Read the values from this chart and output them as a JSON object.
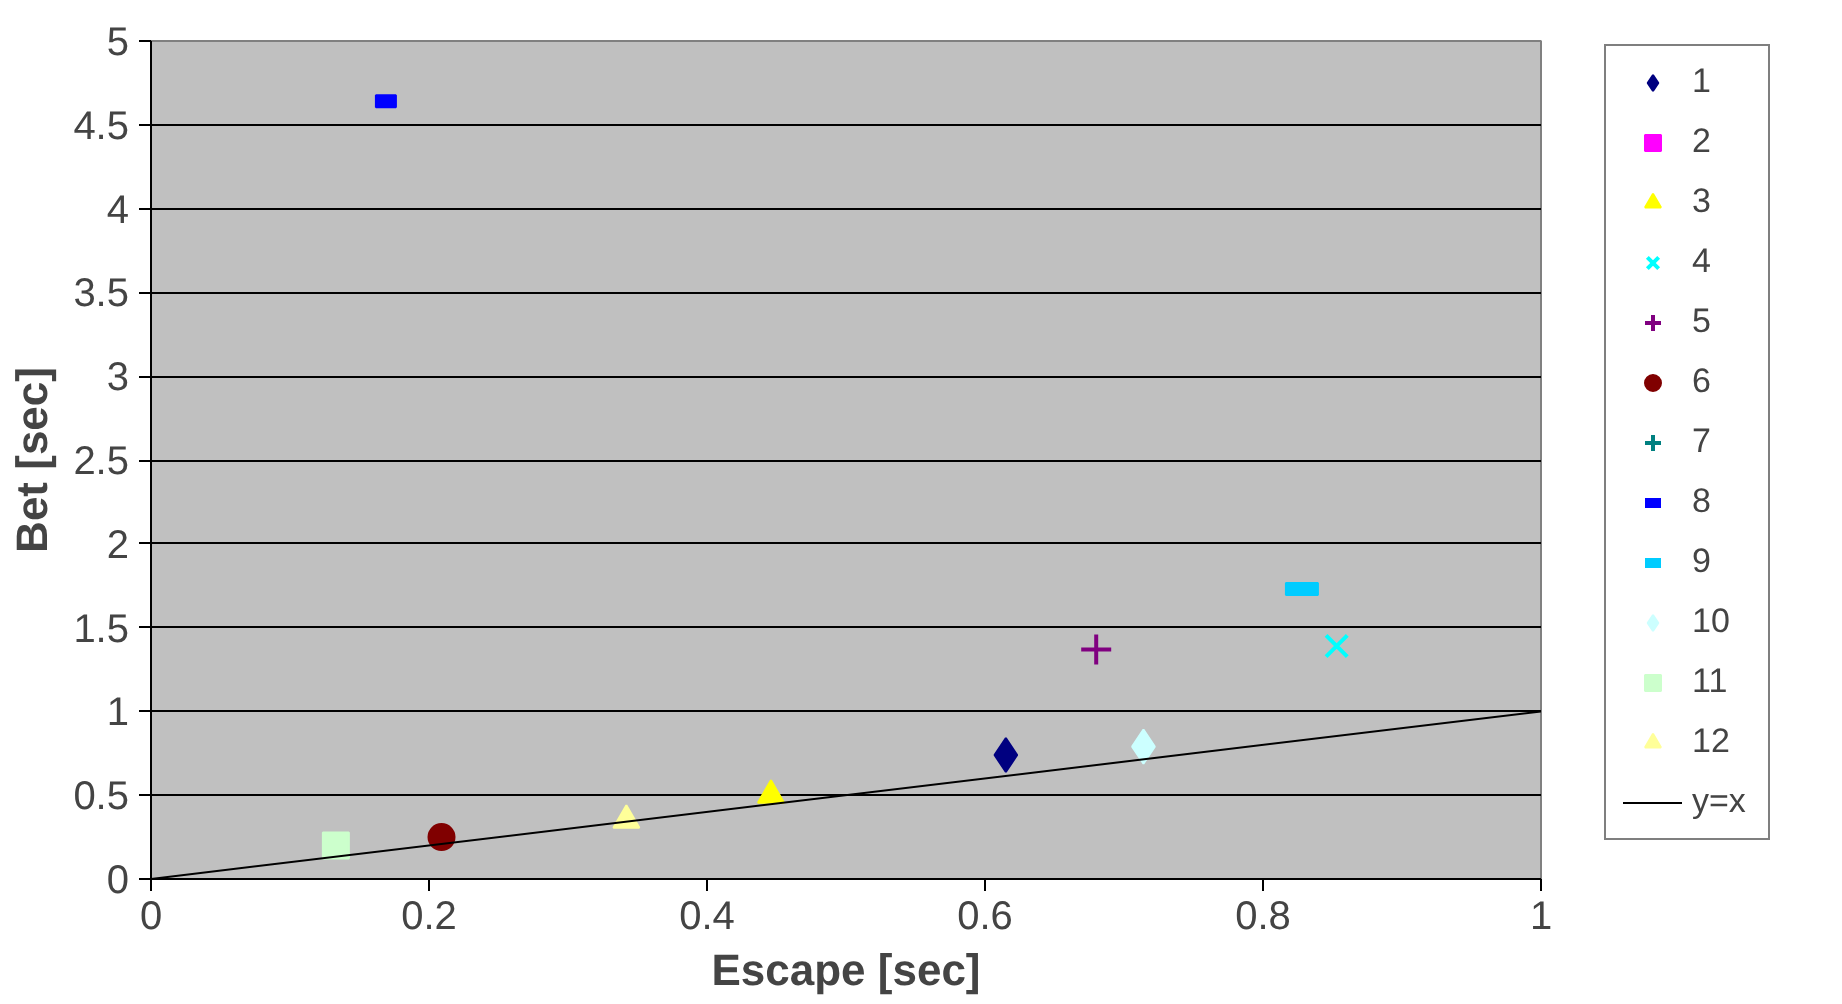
{
  "chart_data": {
    "type": "scatter",
    "xlabel": "Escape [sec]",
    "ylabel": "Bet [sec]",
    "xlim": [
      0,
      1
    ],
    "ylim": [
      0,
      5
    ],
    "xticks": [
      0,
      0.2,
      0.4,
      0.6,
      0.8,
      1
    ],
    "yticks": [
      0,
      0.5,
      1,
      1.5,
      2,
      2.5,
      3,
      3.5,
      4,
      4.5,
      5
    ],
    "grid": "y",
    "legend": "right",
    "series": [
      {
        "name": "1",
        "color": "#000080",
        "marker": "diamond",
        "x": [
          0.615
        ],
        "values": [
          0.74
        ]
      },
      {
        "name": "2",
        "color": "#ff00ff",
        "marker": "square",
        "x": [
          null
        ],
        "values": [
          null
        ]
      },
      {
        "name": "3",
        "color": "#ffff00",
        "marker": "triangle",
        "x": [
          0.446
        ],
        "values": [
          0.5
        ]
      },
      {
        "name": "4",
        "color": "#00ffff",
        "marker": "x",
        "x": [
          0.853
        ],
        "values": [
          1.39
        ]
      },
      {
        "name": "5",
        "color": "#800080",
        "marker": "cross",
        "x": [
          0.68
        ],
        "values": [
          1.37
        ]
      },
      {
        "name": "6",
        "color": "#800000",
        "marker": "circle",
        "x": [
          0.209
        ],
        "values": [
          0.25
        ]
      },
      {
        "name": "7",
        "color": "#008080",
        "marker": "cross",
        "x": [
          null
        ],
        "values": [
          null
        ]
      },
      {
        "name": "8",
        "color": "#0000ff",
        "x": [
          0.169
        ],
        "values": [
          4.64
        ]
      },
      {
        "name": "9",
        "color": "#00ccff",
        "x": [
          0.828
        ],
        "values": [
          1.73
        ]
      },
      {
        "name": "10",
        "color": "#ccffff",
        "marker": "diamond",
        "x": [
          0.714
        ],
        "values": [
          0.79
        ]
      },
      {
        "name": "11",
        "color": "#ccffcc",
        "marker": "square",
        "x": [
          0.133
        ],
        "values": [
          0.2
        ]
      },
      {
        "name": "12",
        "color": "#ffff99",
        "marker": "triangle",
        "x": [
          0.342
        ],
        "values": [
          0.35
        ]
      },
      {
        "name": "y=x",
        "type": "line",
        "color": "#000000",
        "marker": "none",
        "x": [
          0,
          1
        ],
        "values": [
          0,
          1
        ]
      }
    ]
  }
}
